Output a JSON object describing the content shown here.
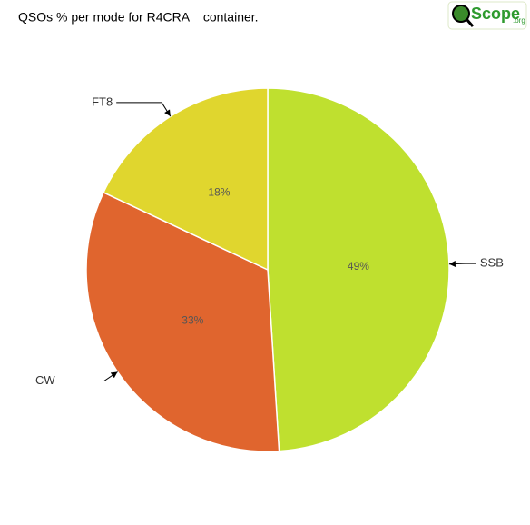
{
  "chart_data": {
    "type": "pie",
    "title": "QSOs % per mode for R4CRA    container.",
    "logo": {
      "main": "Scope",
      "suffix": ".org"
    },
    "categories": [
      "SSB",
      "CW",
      "FT8"
    ],
    "values": [
      49,
      33,
      18
    ],
    "value_labels": [
      "49%",
      "33%",
      "18%"
    ],
    "colors": [
      "#bfe02f",
      "#e0652e",
      "#e0d62e"
    ]
  }
}
